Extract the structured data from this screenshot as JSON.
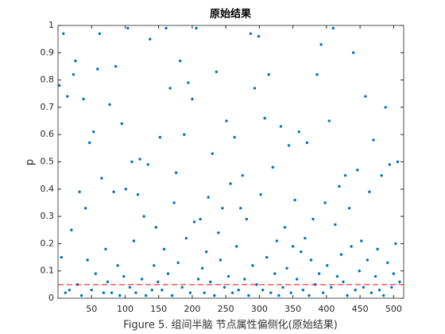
{
  "chart_data": {
    "type": "scatter",
    "title": "原始结果",
    "ylabel": "p",
    "caption": "Figure 5. 组间半脑 节点属性偏侧化(原始结果)",
    "color": "#0072bd",
    "xlim": [
      0,
      515
    ],
    "ylim": [
      0,
      1
    ],
    "xticks": [
      50,
      100,
      150,
      200,
      250,
      300,
      350,
      400,
      450,
      500
    ],
    "yticks": [
      0,
      0.1,
      0.2,
      0.3,
      0.4,
      0.5,
      0.6,
      0.7,
      0.8,
      0.9,
      1
    ],
    "reference_line": {
      "value": 0.05,
      "color": "#ff0000"
    },
    "x": [
      2,
      5,
      8,
      11,
      14,
      17,
      20,
      23,
      26,
      29,
      32,
      35,
      38,
      41,
      44,
      47,
      50,
      53,
      56,
      59,
      62,
      65,
      68,
      71,
      74,
      77,
      80,
      83,
      86,
      89,
      92,
      95,
      98,
      101,
      104,
      107,
      110,
      113,
      116,
      119,
      122,
      125,
      128,
      131,
      134,
      137,
      140,
      143,
      146,
      149,
      152,
      155,
      158,
      161,
      164,
      167,
      170,
      173,
      176,
      179,
      182,
      185,
      188,
      191,
      194,
      197,
      200,
      203,
      206,
      209,
      212,
      215,
      218,
      221,
      224,
      227,
      230,
      233,
      236,
      239,
      242,
      245,
      248,
      251,
      254,
      257,
      260,
      263,
      266,
      269,
      272,
      275,
      278,
      281,
      284,
      287,
      290,
      293,
      296,
      299,
      302,
      305,
      308,
      311,
      314,
      317,
      320,
      323,
      326,
      329,
      332,
      335,
      338,
      341,
      344,
      347,
      350,
      353,
      356,
      359,
      362,
      365,
      368,
      371,
      374,
      377,
      380,
      383,
      386,
      389,
      392,
      395,
      398,
      401,
      404,
      407,
      410,
      413,
      416,
      419,
      422,
      425,
      428,
      431,
      434,
      437,
      440,
      443,
      446,
      449,
      452,
      455,
      458,
      461,
      464,
      467,
      470,
      473,
      476,
      479,
      482,
      485,
      488,
      491,
      494,
      497,
      500,
      503,
      506,
      509
    ],
    "values": [
      0.78,
      0.15,
      0.97,
      0.02,
      0.74,
      0.03,
      0.25,
      0.82,
      0.87,
      0.05,
      0.39,
      0.01,
      0.73,
      0.33,
      0.14,
      0.57,
      0.03,
      0.61,
      0.09,
      0.84,
      0.97,
      0.44,
      0.02,
      0.18,
      0.06,
      0.71,
      0.02,
      0.39,
      0.85,
      0.12,
      0.01,
      0.64,
      0.08,
      0.4,
      0.99,
      0.04,
      0.5,
      0.21,
      0.02,
      0.38,
      0.51,
      0.07,
      0.3,
      0.01,
      0.49,
      0.95,
      0.03,
      0.12,
      0.26,
      0.06,
      0.59,
      0.03,
      0.18,
      0.99,
      0.09,
      0.77,
      0.01,
      0.35,
      0.46,
      0.13,
      0.87,
      0.04,
      0.6,
      0.22,
      0.79,
      0.02,
      0.73,
      0.28,
      0.99,
      0.07,
      0.29,
      0.11,
      0.02,
      0.17,
      0.37,
      0.06,
      0.53,
      0.01,
      0.83,
      0.24,
      0.14,
      0.33,
      0.04,
      0.65,
      0.08,
      0.42,
      0.02,
      0.59,
      0.19,
      0.03,
      0.33,
      0.45,
      0.07,
      0.29,
      0.01,
      0.97,
      0.12,
      0.77,
      0.05,
      0.96,
      0.38,
      0.03,
      0.66,
      0.15,
      0.82,
      0.02,
      0.48,
      0.09,
      0.21,
      0.01,
      0.63,
      0.04,
      0.26,
      0.11,
      0.56,
      0.02,
      0.19,
      0.36,
      0.07,
      0.61,
      0.17,
      0.03,
      0.22,
      0.57,
      0.01,
      0.14,
      0.29,
      0.05,
      0.82,
      0.09,
      0.93,
      0.02,
      0.35,
      0.12,
      0.65,
      0.04,
      0.99,
      0.27,
      0.08,
      0.41,
      0.16,
      0.06,
      0.45,
      0.01,
      0.33,
      0.19,
      0.9,
      0.03,
      0.47,
      0.1,
      0.21,
      0.04,
      0.74,
      0.14,
      0.39,
      0.02,
      0.58,
      0.08,
      0.18,
      0.03,
      0.45,
      0.01,
      0.7,
      0.13,
      0.49,
      0.04,
      0.09,
      0.2,
      0.5,
      0.06
    ]
  }
}
